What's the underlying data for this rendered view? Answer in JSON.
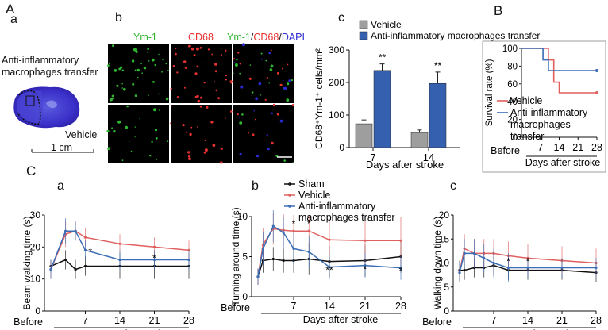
{
  "figure": {
    "label_A": "A",
    "label_B": "B",
    "label_C": "C",
    "sub_a": "a",
    "sub_b": "b",
    "sub_c": "c",
    "sub_Ca": "a",
    "sub_Cb": "b",
    "sub_Cc": "c"
  },
  "panel_Aa": {
    "title_line1": "Anti-inflammatory",
    "title_line2": "macrophages transfer",
    "caption": "Vehicle",
    "scale": "1 cm"
  },
  "panel_Ab": {
    "col1": "Ym-1",
    "col2": "CD68",
    "col3_part1": "Ym-1",
    "col3_part2": "/",
    "col3_part3": "CD68",
    "col3_part4": "/",
    "col3_part5": "DAPI",
    "colors": {
      "green": "#2fb52f",
      "red": "#e53030",
      "blue": "#2a2ad0"
    }
  },
  "chart_data": [
    {
      "id": "Ac",
      "type": "bar",
      "categories": [
        "7",
        "14"
      ],
      "xlabel": "Days after stroke",
      "ylabel": "CD68⁺Ym-1⁺ cells/mm²",
      "ylim": [
        0,
        300
      ],
      "yticks": [
        0,
        100,
        200,
        300
      ],
      "series": [
        {
          "name": "Vehicle",
          "color": "#9e9e9e",
          "values": [
            73,
            46
          ],
          "errors": [
            12,
            8
          ]
        },
        {
          "name": "Anti-inflammatory macrophages transfer",
          "color": "#3560b0",
          "values": [
            237,
            197
          ],
          "errors": [
            20,
            35
          ]
        }
      ],
      "annotations": [
        "**",
        "**"
      ]
    },
    {
      "id": "B",
      "type": "line",
      "xlabel": "Days after stroke",
      "ylabel": "Survival rate (%)",
      "ylim": [
        0,
        100
      ],
      "yticks": [
        0,
        20,
        40,
        60,
        80,
        100
      ],
      "xticks": [
        "Before",
        "7",
        "14",
        "21",
        "28"
      ],
      "series": [
        {
          "name": "Vehicle",
          "color": "#e06060",
          "steps": [
            [
              0,
              100
            ],
            [
              10,
              100
            ],
            [
              10,
              87
            ],
            [
              12,
              87
            ],
            [
              12,
              62
            ],
            [
              14,
              62
            ],
            [
              14,
              50
            ],
            [
              28,
              50
            ]
          ]
        },
        {
          "name": "Anti-inflammatory macrophages transfer",
          "color": "#3a6db5",
          "steps": [
            [
              0,
              100
            ],
            [
              8,
              100
            ],
            [
              8,
              87
            ],
            [
              10,
              87
            ],
            [
              10,
              75
            ],
            [
              28,
              75
            ]
          ]
        }
      ],
      "legend_line1": "Vehicle",
      "legend_line2": "Anti-inflammatory",
      "legend_line3": "macrophages",
      "legend_line4": "transfer"
    },
    {
      "id": "Ca",
      "type": "line",
      "xlabel": "Days after stroke",
      "ylabel": "Beam walking time (s)",
      "ylim": [
        0,
        30
      ],
      "yticks": [
        0,
        10,
        20,
        30
      ],
      "xticks": [
        "Before",
        "7",
        "14",
        "21",
        "28"
      ],
      "x": [
        0,
        3,
        5,
        7,
        14,
        21,
        28
      ],
      "series": [
        {
          "name": "Sham",
          "color": "#111111",
          "values": [
            14,
            16,
            13,
            14,
            14,
            14,
            14
          ],
          "errors": [
            2,
            3,
            3,
            3,
            4,
            4,
            4
          ]
        },
        {
          "name": "Vehicle",
          "color": "#e06060",
          "values": [
            13,
            24,
            25,
            23,
            21,
            20,
            19
          ],
          "errors": [
            3,
            4,
            3,
            3,
            3,
            3,
            3
          ]
        },
        {
          "name": "Anti-inflammatory macrophages transfer",
          "color": "#3a6db5",
          "values": [
            13,
            25,
            25,
            19,
            16,
            16,
            16
          ],
          "errors": [
            3,
            4,
            3,
            3,
            3,
            3,
            3
          ]
        }
      ],
      "annotations": [
        "*",
        "*"
      ]
    },
    {
      "id": "Cb",
      "type": "line",
      "xlabel": "Days after stroke",
      "ylabel": "Turning around time (s)",
      "ylim": [
        0,
        10
      ],
      "yticks": [
        0,
        5,
        10
      ],
      "xticks": [
        "Before",
        "7",
        "14",
        "21",
        "28"
      ],
      "x": [
        0,
        1,
        3,
        5,
        7,
        10,
        14,
        21,
        28
      ],
      "series": [
        {
          "name": "Sham",
          "color": "#111111",
          "values": [
            2.5,
            4.5,
            4.7,
            4.5,
            4.5,
            4.7,
            4.4,
            4.5,
            5.0
          ],
          "errors": [
            1,
            1.5,
            1.5,
            1.5,
            1.5,
            2,
            2,
            2,
            2
          ]
        },
        {
          "name": "Vehicle",
          "color": "#e06060",
          "values": [
            2.5,
            6.5,
            8.5,
            8.3,
            8.2,
            8.2,
            7.1,
            7.0,
            7.0
          ],
          "errors": [
            1,
            2,
            2,
            2,
            2,
            2,
            2.5,
            3,
            3
          ]
        },
        {
          "name": "Anti-inflammatory macrophages transfer",
          "color": "#3a6db5",
          "values": [
            2.5,
            6,
            8.8,
            8.0,
            6.0,
            5.6,
            3.7,
            3.9,
            3.6
          ],
          "errors": [
            1,
            2,
            2,
            2,
            2,
            2,
            1.5,
            1.5,
            1.5
          ]
        }
      ],
      "annotations": [
        "*",
        "*",
        "**",
        "*",
        "*"
      ],
      "legend": [
        "Sham",
        "Vehicle",
        "Anti-inflammatory",
        "macrophages  transfer"
      ]
    },
    {
      "id": "Cc",
      "type": "line",
      "xlabel": "Days after stroke",
      "ylabel": "Walking down time (s)",
      "ylim": [
        0,
        20
      ],
      "yticks": [
        0,
        5,
        10,
        15,
        20
      ],
      "xticks": [
        "Before",
        "7",
        "14",
        "21",
        "28"
      ],
      "x": [
        0,
        1,
        3,
        5,
        7,
        10,
        14,
        21,
        28
      ],
      "series": [
        {
          "name": "Sham",
          "color": "#111111",
          "values": [
            8.5,
            8.5,
            9,
            9,
            9.5,
            8.5,
            8.5,
            8.5,
            8
          ],
          "errors": [
            2,
            2,
            2,
            2,
            2,
            2,
            2,
            2,
            2
          ]
        },
        {
          "name": "Vehicle",
          "color": "#e06060",
          "values": [
            8,
            13,
            12,
            12,
            12,
            11.5,
            11,
            10.5,
            10
          ],
          "errors": [
            2,
            3,
            3,
            3,
            3,
            3,
            3,
            3,
            3
          ]
        },
        {
          "name": "Anti-inflammatory macrophages transfer",
          "color": "#3a6db5",
          "values": [
            8,
            12,
            12,
            11,
            10,
            9,
            9,
            9,
            9
          ],
          "errors": [
            2,
            3,
            3,
            3,
            3,
            3,
            2,
            2,
            2
          ]
        }
      ],
      "annotations": [
        "*",
        "*"
      ]
    }
  ]
}
